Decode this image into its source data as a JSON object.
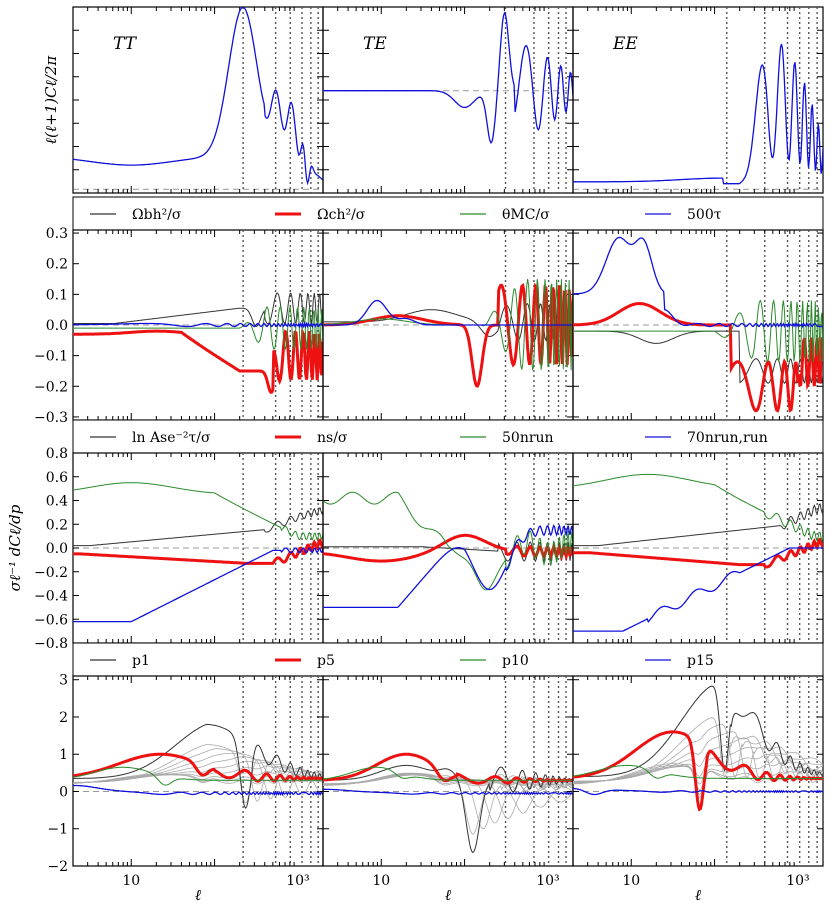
{
  "chart_data": {
    "type": "line",
    "xscale": "log",
    "xlim": [
      2,
      2000
    ],
    "xlabel": "ℓ",
    "x_tick_labels": [
      "10",
      "10³"
    ],
    "columns": [
      "TT",
      "TE",
      "EE"
    ],
    "rows": [
      {
        "id": "spectra",
        "ylabel": "ℓ(ℓ+1)Cℓ/2π",
        "ylim": [
          0,
          1
        ],
        "yticks": [],
        "legend": []
      },
      {
        "id": "cosmo",
        "ylabel": "",
        "ylim": [
          -0.31,
          0.31
        ],
        "yticks": [
          "0.3",
          "0.2",
          "0.1",
          "0.0",
          "−0.1",
          "−0.2",
          "−0.3"
        ],
        "legend": [
          {
            "label": "Ωbh²/σ",
            "color": "#333333"
          },
          {
            "label": "Ωch²/σ",
            "color": "#ee1111"
          },
          {
            "label": "θMC/σ",
            "color": "#2a8a2a"
          },
          {
            "label": "500τ",
            "color": "#1010dd"
          }
        ]
      },
      {
        "id": "primordial",
        "ylabel": "σℓ⁻¹ dCℓ/dp",
        "ylim": [
          -0.8,
          0.8
        ],
        "yticks": [
          "0.8",
          "0.6",
          "0.4",
          "0.2",
          "0.0",
          "−0.2",
          "−0.4",
          "−0.6",
          "−0.8"
        ],
        "legend": [
          {
            "label": "ln Ase⁻²τ/σ",
            "color": "#333333"
          },
          {
            "label": "ns/σ",
            "color": "#ee1111"
          },
          {
            "label": "50nrun",
            "color": "#2a8a2a"
          },
          {
            "label": "70nrun,run",
            "color": "#1010dd"
          }
        ]
      },
      {
        "id": "knots",
        "ylabel": "",
        "ylim": [
          -2,
          3.1
        ],
        "yticks": [
          "3",
          "2",
          "1",
          "0",
          "−1",
          "−2"
        ],
        "legend": [
          {
            "label": "p1",
            "color": "#333333"
          },
          {
            "label": "p5",
            "color": "#ee1111"
          },
          {
            "label": "p10",
            "color": "#2a8a2a"
          },
          {
            "label": "p15",
            "color": "#1010dd"
          }
        ]
      }
    ],
    "vertical_markers": {
      "TT": [
        220,
        540,
        810,
        1120,
        1430,
        1750
      ],
      "TE": [
        310,
        680,
        1020,
        1340,
        1650
      ],
      "EE": [
        140,
        400,
        750,
        1050,
        1350,
        1700
      ]
    },
    "colors": {
      "black": "#333333",
      "red": "#ee1111",
      "green": "#2a8a2a",
      "blue": "#1010dd",
      "grey": "#aaaaaa"
    }
  }
}
